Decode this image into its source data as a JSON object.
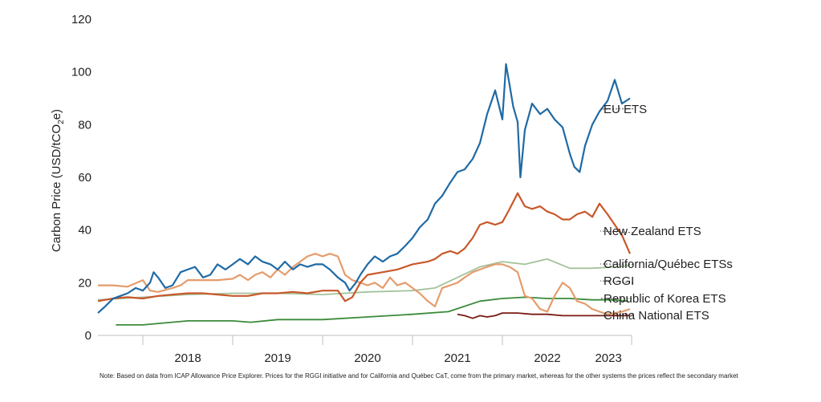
{
  "chart_data": {
    "type": "line",
    "title": "",
    "xlabel": "",
    "ylabel": "Carbon Price (USD/tCO2e)",
    "ylabel_parts": [
      "Carbon Price (USD/tCO",
      "2",
      "e)"
    ],
    "ylim": [
      0,
      120
    ],
    "yticks": [
      0,
      20,
      40,
      60,
      80,
      100,
      120
    ],
    "xlim": [
      2017.5,
      2023.75
    ],
    "xtick_labels": [
      {
        "label": "2018",
        "x": 2018.5
      },
      {
        "label": "2019",
        "x": 2019.5
      },
      {
        "label": "2020",
        "x": 2020.5
      },
      {
        "label": "2021",
        "x": 2021.5
      },
      {
        "label": "2022",
        "x": 2022.5
      },
      {
        "label": "2023",
        "x": 2023.5
      }
    ],
    "year_separators": [
      2018,
      2019,
      2020,
      2021,
      2022,
      2023
    ],
    "grid": false,
    "legend": "direct labels at right of series",
    "series": [
      {
        "name": "EU ETS",
        "color": "#1f6aa5",
        "points": [
          [
            2017.5,
            8.5
          ],
          [
            2017.58,
            11
          ],
          [
            2017.67,
            14
          ],
          [
            2017.75,
            15
          ],
          [
            2017.83,
            16
          ],
          [
            2017.92,
            18
          ],
          [
            2018.0,
            17
          ],
          [
            2018.08,
            20
          ],
          [
            2018.12,
            24
          ],
          [
            2018.17,
            22
          ],
          [
            2018.25,
            18
          ],
          [
            2018.33,
            19
          ],
          [
            2018.42,
            24
          ],
          [
            2018.5,
            25
          ],
          [
            2018.58,
            26
          ],
          [
            2018.67,
            22
          ],
          [
            2018.75,
            23
          ],
          [
            2018.83,
            27
          ],
          [
            2018.92,
            25
          ],
          [
            2019.0,
            27
          ],
          [
            2019.08,
            29
          ],
          [
            2019.17,
            27
          ],
          [
            2019.25,
            30
          ],
          [
            2019.33,
            28
          ],
          [
            2019.42,
            27
          ],
          [
            2019.5,
            25
          ],
          [
            2019.58,
            28
          ],
          [
            2019.67,
            25
          ],
          [
            2019.75,
            27
          ],
          [
            2019.83,
            26
          ],
          [
            2019.92,
            27
          ],
          [
            2020.0,
            27
          ],
          [
            2020.08,
            25
          ],
          [
            2020.17,
            22
          ],
          [
            2020.25,
            20
          ],
          [
            2020.3,
            17
          ],
          [
            2020.37,
            20
          ],
          [
            2020.42,
            23
          ],
          [
            2020.5,
            27
          ],
          [
            2020.58,
            30
          ],
          [
            2020.67,
            28
          ],
          [
            2020.75,
            30
          ],
          [
            2020.83,
            31
          ],
          [
            2020.92,
            34
          ],
          [
            2021.0,
            37
          ],
          [
            2021.08,
            41
          ],
          [
            2021.17,
            44
          ],
          [
            2021.25,
            50
          ],
          [
            2021.33,
            53
          ],
          [
            2021.42,
            58
          ],
          [
            2021.5,
            62
          ],
          [
            2021.58,
            63
          ],
          [
            2021.67,
            67
          ],
          [
            2021.75,
            73
          ],
          [
            2021.83,
            84
          ],
          [
            2021.92,
            93
          ],
          [
            2022.0,
            82
          ],
          [
            2022.04,
            103
          ],
          [
            2022.08,
            95
          ],
          [
            2022.12,
            87
          ],
          [
            2022.17,
            81
          ],
          [
            2022.2,
            60
          ],
          [
            2022.25,
            78
          ],
          [
            2022.33,
            88
          ],
          [
            2022.42,
            84
          ],
          [
            2022.5,
            86
          ],
          [
            2022.58,
            82
          ],
          [
            2022.67,
            79
          ],
          [
            2022.75,
            69
          ],
          [
            2022.8,
            64
          ],
          [
            2022.86,
            62
          ],
          [
            2022.92,
            72
          ],
          [
            2023.0,
            80
          ],
          [
            2023.08,
            85
          ],
          [
            2023.17,
            89
          ],
          [
            2023.25,
            97
          ],
          [
            2023.33,
            88
          ],
          [
            2023.42,
            90
          ]
        ],
        "label_value": 86
      },
      {
        "name": "New Zealand ETS",
        "color": "#c8582a",
        "points": [
          [
            2017.5,
            13
          ],
          [
            2017.67,
            14
          ],
          [
            2017.83,
            14.5
          ],
          [
            2018.0,
            14
          ],
          [
            2018.17,
            15
          ],
          [
            2018.33,
            15.5
          ],
          [
            2018.5,
            16
          ],
          [
            2018.67,
            16
          ],
          [
            2018.83,
            15.5
          ],
          [
            2019.0,
            15
          ],
          [
            2019.17,
            15
          ],
          [
            2019.33,
            16
          ],
          [
            2019.5,
            16
          ],
          [
            2019.67,
            16.5
          ],
          [
            2019.83,
            16
          ],
          [
            2020.0,
            17
          ],
          [
            2020.17,
            17
          ],
          [
            2020.25,
            13
          ],
          [
            2020.33,
            14.5
          ],
          [
            2020.42,
            20
          ],
          [
            2020.5,
            23
          ],
          [
            2020.67,
            24
          ],
          [
            2020.83,
            25
          ],
          [
            2021.0,
            27
          ],
          [
            2021.17,
            28
          ],
          [
            2021.25,
            29
          ],
          [
            2021.33,
            31
          ],
          [
            2021.42,
            32
          ],
          [
            2021.5,
            31
          ],
          [
            2021.58,
            33
          ],
          [
            2021.67,
            37
          ],
          [
            2021.75,
            42
          ],
          [
            2021.83,
            43
          ],
          [
            2021.92,
            42
          ],
          [
            2022.0,
            43
          ],
          [
            2022.08,
            48
          ],
          [
            2022.17,
            54
          ],
          [
            2022.25,
            49
          ],
          [
            2022.33,
            48
          ],
          [
            2022.42,
            49
          ],
          [
            2022.5,
            47
          ],
          [
            2022.58,
            46
          ],
          [
            2022.67,
            44
          ],
          [
            2022.75,
            44
          ],
          [
            2022.83,
            46
          ],
          [
            2022.92,
            47
          ],
          [
            2023.0,
            45
          ],
          [
            2023.08,
            50
          ],
          [
            2023.17,
            46
          ],
          [
            2023.25,
            42
          ],
          [
            2023.33,
            38
          ],
          [
            2023.42,
            31
          ]
        ],
        "label_value": 39
      },
      {
        "name": "California/Québec ETSs",
        "color": "#a3c29a",
        "points": [
          [
            2017.5,
            13.5
          ],
          [
            2018.0,
            14.5
          ],
          [
            2018.5,
            15.5
          ],
          [
            2019.0,
            16
          ],
          [
            2019.5,
            16
          ],
          [
            2020.0,
            15.5
          ],
          [
            2020.5,
            16.5
          ],
          [
            2021.0,
            17
          ],
          [
            2021.25,
            18
          ],
          [
            2021.5,
            22
          ],
          [
            2021.75,
            26
          ],
          [
            2022.0,
            28
          ],
          [
            2022.25,
            27
          ],
          [
            2022.5,
            29
          ],
          [
            2022.75,
            25.5
          ],
          [
            2023.0,
            25.5
          ],
          [
            2023.25,
            26
          ],
          [
            2023.42,
            26.5
          ]
        ],
        "label_value": 27
      },
      {
        "name": "RGGI",
        "color": "#e59c6c",
        "points": [
          [
            2017.5,
            19
          ],
          [
            2017.67,
            19
          ],
          [
            2017.83,
            18.5
          ],
          [
            2018.0,
            21
          ],
          [
            2018.08,
            17
          ],
          [
            2018.17,
            16.5
          ],
          [
            2018.33,
            18
          ],
          [
            2018.42,
            19
          ],
          [
            2018.5,
            21
          ],
          [
            2018.67,
            21
          ],
          [
            2018.83,
            21
          ],
          [
            2019.0,
            21.5
          ],
          [
            2019.08,
            23
          ],
          [
            2019.17,
            21
          ],
          [
            2019.25,
            23
          ],
          [
            2019.33,
            24
          ],
          [
            2019.42,
            22
          ],
          [
            2019.5,
            25
          ],
          [
            2019.58,
            23
          ],
          [
            2019.67,
            26
          ],
          [
            2019.75,
            28
          ],
          [
            2019.83,
            30
          ],
          [
            2019.92,
            31
          ],
          [
            2020.0,
            30
          ],
          [
            2020.08,
            31
          ],
          [
            2020.17,
            30
          ],
          [
            2020.25,
            23
          ],
          [
            2020.33,
            21
          ],
          [
            2020.42,
            20
          ],
          [
            2020.5,
            19
          ],
          [
            2020.58,
            20
          ],
          [
            2020.67,
            18
          ],
          [
            2020.75,
            22
          ],
          [
            2020.83,
            19
          ],
          [
            2020.92,
            20
          ],
          [
            2021.0,
            18
          ],
          [
            2021.08,
            16
          ],
          [
            2021.17,
            13
          ],
          [
            2021.25,
            11
          ],
          [
            2021.33,
            18
          ],
          [
            2021.42,
            19
          ],
          [
            2021.5,
            20
          ],
          [
            2021.58,
            22
          ],
          [
            2021.67,
            24
          ],
          [
            2021.75,
            25
          ],
          [
            2021.83,
            26
          ],
          [
            2021.92,
            27
          ],
          [
            2022.0,
            27
          ],
          [
            2022.08,
            26
          ],
          [
            2022.17,
            24
          ],
          [
            2022.25,
            15
          ],
          [
            2022.33,
            14
          ],
          [
            2022.42,
            10
          ],
          [
            2022.5,
            9
          ],
          [
            2022.58,
            15
          ],
          [
            2022.67,
            20
          ],
          [
            2022.75,
            18
          ],
          [
            2022.83,
            13
          ],
          [
            2022.92,
            12
          ],
          [
            2023.0,
            10
          ],
          [
            2023.08,
            9
          ],
          [
            2023.17,
            8
          ],
          [
            2023.25,
            8.5
          ],
          [
            2023.33,
            9
          ],
          [
            2023.42,
            10
          ]
        ],
        "label_value": 20
      },
      {
        "name": "Republic of Korea ETS",
        "color": "#3a8a3a",
        "points": [
          [
            2017.7,
            4
          ],
          [
            2018.0,
            4
          ],
          [
            2018.5,
            5.5
          ],
          [
            2019.0,
            5.5
          ],
          [
            2019.2,
            5
          ],
          [
            2019.5,
            6
          ],
          [
            2020.0,
            6
          ],
          [
            2020.5,
            7
          ],
          [
            2021.0,
            8
          ],
          [
            2021.4,
            9
          ],
          [
            2021.75,
            13
          ],
          [
            2022.0,
            14
          ],
          [
            2022.25,
            14.5
          ],
          [
            2022.5,
            14
          ],
          [
            2022.75,
            14
          ],
          [
            2023.0,
            13.5
          ],
          [
            2023.2,
            13.5
          ],
          [
            2023.4,
            13
          ]
        ],
        "label_value": 14
      },
      {
        "name": "China National ETS",
        "color": "#7a1a12",
        "points": [
          [
            2021.5,
            8
          ],
          [
            2021.58,
            7.5
          ],
          [
            2021.67,
            6.5
          ],
          [
            2021.75,
            7.5
          ],
          [
            2021.83,
            7
          ],
          [
            2021.92,
            7.5
          ],
          [
            2022.0,
            8.5
          ],
          [
            2022.17,
            8.5
          ],
          [
            2022.33,
            8
          ],
          [
            2022.5,
            8
          ],
          [
            2022.67,
            7.5
          ],
          [
            2022.83,
            7.5
          ],
          [
            2023.0,
            7.5
          ],
          [
            2023.17,
            7.5
          ],
          [
            2023.33,
            7.5
          ],
          [
            2023.42,
            7.5
          ]
        ],
        "label_value": 8
      }
    ]
  },
  "note": "Note: Based on data from ICAP Allowance Price Explorer. Prices for the RGGI initiative and for California and Québec CaT, come from the primary market, whereas for the other systems the prices reflect the secondary market"
}
